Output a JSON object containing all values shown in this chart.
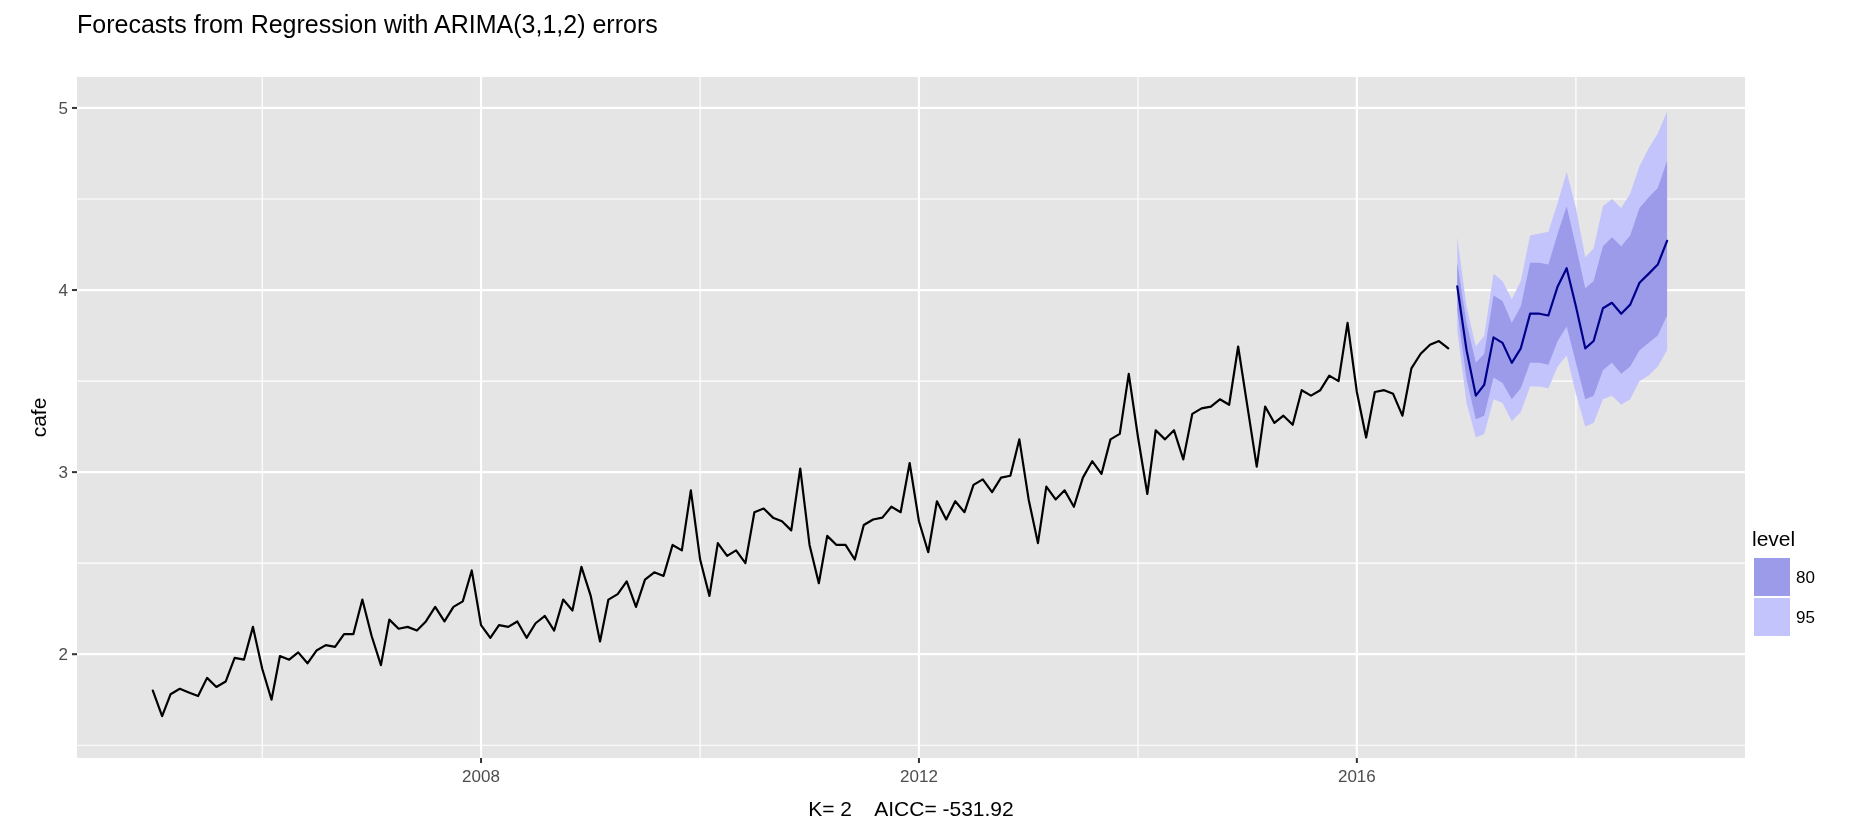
{
  "chart_data": {
    "type": "line",
    "title": "Forecasts from Regression with ARIMA(3,1,2) errors",
    "xlabel": "K= 2    AICC= -531.92",
    "ylabel": "cafe",
    "legend_title": "level",
    "legend": "right",
    "grid": true,
    "xlim": [
      "2004-04-23",
      "2019-07-19"
    ],
    "xticks": [
      {
        "value": "2006",
        "label": null
      },
      "2008",
      {
        "value": "2010",
        "label": null
      },
      "2012",
      {
        "value": "2014",
        "label": null
      },
      "2016",
      {
        "value": "2018",
        "label": null
      }
    ],
    "ylim": [
      1.43,
      5.17
    ],
    "yticks": [
      {
        "value": 1.5,
        "label": null
      },
      2,
      {
        "value": 2.5,
        "label": null
      },
      3,
      {
        "value": 3.5,
        "label": null
      },
      4,
      {
        "value": 4.5,
        "label": null
      },
      5
    ],
    "series": [
      {
        "type": "area",
        "name": "95",
        "color": "#c4c4fc",
        "x": [
          "2016-12",
          "2017-01",
          "2017-02",
          "2017-03",
          "2017-04",
          "2017-05",
          "2017-06",
          "2017-07",
          "2017-08",
          "2017-09",
          "2017-10",
          "2017-11",
          "2017-12",
          "2018-01",
          "2018-02",
          "2018-03",
          "2018-04",
          "2018-05",
          "2018-06",
          "2018-07",
          "2018-08",
          "2018-09",
          "2018-10",
          "2018-11"
        ],
        "values": [
          null,
          null,
          null,
          null,
          null,
          null,
          null,
          null,
          null,
          null,
          null,
          null,
          null,
          null,
          null,
          null,
          null,
          null,
          null,
          null,
          null,
          null,
          null,
          null
        ],
        "lower": [
          3.78,
          3.38,
          3.19,
          3.21,
          3.4,
          3.38,
          3.28,
          3.33,
          3.47,
          3.47,
          3.46,
          3.58,
          3.64,
          3.43,
          3.25,
          3.27,
          3.4,
          3.42,
          3.37,
          3.4,
          3.5,
          3.53,
          3.58,
          3.67
        ],
        "upper": [
          4.29,
          3.91,
          3.69,
          3.75,
          4.09,
          4.05,
          3.95,
          4.05,
          4.3,
          4.31,
          4.32,
          4.48,
          4.65,
          4.45,
          4.18,
          4.23,
          4.46,
          4.5,
          4.45,
          4.53,
          4.68,
          4.78,
          4.86,
          4.98
        ]
      },
      {
        "type": "area",
        "name": "80",
        "color": "#9b9bea",
        "x": [
          "2016-12",
          "2017-01",
          "2017-02",
          "2017-03",
          "2017-04",
          "2017-05",
          "2017-06",
          "2017-07",
          "2017-08",
          "2017-09",
          "2017-10",
          "2017-11",
          "2017-12",
          "2018-01",
          "2018-02",
          "2018-03",
          "2018-04",
          "2018-05",
          "2018-06",
          "2018-07",
          "2018-08",
          "2018-09",
          "2018-10",
          "2018-11"
        ],
        "values": [
          null,
          null,
          null,
          null,
          null,
          null,
          null,
          null,
          null,
          null,
          null,
          null,
          null,
          null,
          null,
          null,
          null,
          null,
          null,
          null,
          null,
          null,
          null,
          null
        ],
        "lower": [
          3.89,
          3.51,
          3.29,
          3.31,
          3.52,
          3.49,
          3.4,
          3.46,
          3.6,
          3.6,
          3.59,
          3.72,
          3.8,
          3.6,
          3.4,
          3.42,
          3.56,
          3.6,
          3.54,
          3.58,
          3.67,
          3.71,
          3.75,
          3.86
        ],
        "upper": [
          4.15,
          3.82,
          3.6,
          3.65,
          3.97,
          3.94,
          3.82,
          3.91,
          4.15,
          4.15,
          4.14,
          4.31,
          4.46,
          4.24,
          4.01,
          4.05,
          4.24,
          4.29,
          4.24,
          4.3,
          4.45,
          4.51,
          4.56,
          4.71
        ]
      },
      {
        "color": "#000000",
        "x": [
          "2005-01",
          "2005-02",
          "2005-03",
          "2005-04",
          "2005-05",
          "2005-06",
          "2005-07",
          "2005-08",
          "2005-09",
          "2005-10",
          "2005-11",
          "2005-12",
          "2006-01",
          "2006-02",
          "2006-03",
          "2006-04",
          "2006-05",
          "2006-06",
          "2006-07",
          "2006-08",
          "2006-09",
          "2006-10",
          "2006-11",
          "2006-12",
          "2007-01",
          "2007-02",
          "2007-03",
          "2007-04",
          "2007-05",
          "2007-06",
          "2007-07",
          "2007-08",
          "2007-09",
          "2007-10",
          "2007-11",
          "2007-12",
          "2008-01",
          "2008-02",
          "2008-03",
          "2008-04",
          "2008-05",
          "2008-06",
          "2008-07",
          "2008-08",
          "2008-09",
          "2008-10",
          "2008-11",
          "2008-12",
          "2009-01",
          "2009-02",
          "2009-03",
          "2009-04",
          "2009-05",
          "2009-06",
          "2009-07",
          "2009-08",
          "2009-09",
          "2009-10",
          "2009-11",
          "2009-12",
          "2010-01",
          "2010-02",
          "2010-03",
          "2010-04",
          "2010-05",
          "2010-06",
          "2010-07",
          "2010-08",
          "2010-09",
          "2010-10",
          "2010-11",
          "2010-12",
          "2011-01",
          "2011-02",
          "2011-03",
          "2011-04",
          "2011-05",
          "2011-06",
          "2011-07",
          "2011-08",
          "2011-09",
          "2011-10",
          "2011-11",
          "2011-12",
          "2012-01",
          "2012-02",
          "2012-03",
          "2012-04",
          "2012-05",
          "2012-06",
          "2012-07",
          "2012-08",
          "2012-09",
          "2012-10",
          "2012-11",
          "2012-12",
          "2013-01",
          "2013-02",
          "2013-03",
          "2013-04",
          "2013-05",
          "2013-06",
          "2013-07",
          "2013-08",
          "2013-09",
          "2013-10",
          "2013-11",
          "2013-12",
          "2014-01",
          "2014-02",
          "2014-03",
          "2014-04",
          "2014-05",
          "2014-06",
          "2014-07",
          "2014-08",
          "2014-09",
          "2014-10",
          "2014-11",
          "2014-12",
          "2015-01",
          "2015-02",
          "2015-03",
          "2015-04",
          "2015-05",
          "2015-06",
          "2015-07",
          "2015-08",
          "2015-09",
          "2015-10",
          "2015-11",
          "2015-12",
          "2016-01",
          "2016-02",
          "2016-03",
          "2016-04",
          "2016-05",
          "2016-06",
          "2016-07",
          "2016-08",
          "2016-09",
          "2016-10",
          "2016-11"
        ],
        "values": [
          1.8,
          1.66,
          1.78,
          1.81,
          1.79,
          1.77,
          1.87,
          1.82,
          1.85,
          1.98,
          1.97,
          2.15,
          1.92,
          1.75,
          1.99,
          1.97,
          2.01,
          1.95,
          2.02,
          2.05,
          2.04,
          2.11,
          2.11,
          2.3,
          2.1,
          1.94,
          2.19,
          2.14,
          2.15,
          2.13,
          2.18,
          2.26,
          2.18,
          2.26,
          2.29,
          2.46,
          2.16,
          2.09,
          2.16,
          2.15,
          2.18,
          2.09,
          2.17,
          2.21,
          2.13,
          2.3,
          2.24,
          2.48,
          2.32,
          2.07,
          2.3,
          2.33,
          2.4,
          2.26,
          2.41,
          2.45,
          2.43,
          2.6,
          2.57,
          2.9,
          2.52,
          2.32,
          2.61,
          2.54,
          2.57,
          2.5,
          2.78,
          2.8,
          2.75,
          2.73,
          2.68,
          3.02,
          2.6,
          2.39,
          2.65,
          2.6,
          2.6,
          2.52,
          2.71,
          2.74,
          2.75,
          2.81,
          2.78,
          3.05,
          2.73,
          2.56,
          2.84,
          2.74,
          2.84,
          2.78,
          2.93,
          2.96,
          2.89,
          2.97,
          2.98,
          3.18,
          2.85,
          2.61,
          2.92,
          2.85,
          2.9,
          2.81,
          2.97,
          3.06,
          2.99,
          3.18,
          3.21,
          3.54,
          3.19,
          2.88,
          3.23,
          3.18,
          3.23,
          3.07,
          3.32,
          3.35,
          3.36,
          3.4,
          3.37,
          3.69,
          3.36,
          3.03,
          3.36,
          3.27,
          3.31,
          3.26,
          3.45,
          3.42,
          3.45,
          3.53,
          3.5,
          3.82,
          3.44,
          3.19,
          3.44,
          3.45,
          3.43,
          3.31,
          3.57,
          3.65,
          3.7,
          3.72,
          3.68
        ]
      },
      {
        "color": "#00008b",
        "x": [
          "2016-12",
          "2017-01",
          "2017-02",
          "2017-03",
          "2017-04",
          "2017-05",
          "2017-06",
          "2017-07",
          "2017-08",
          "2017-09",
          "2017-10",
          "2017-11",
          "2017-12",
          "2018-01",
          "2018-02",
          "2018-03",
          "2018-04",
          "2018-05",
          "2018-06",
          "2018-07",
          "2018-08",
          "2018-09",
          "2018-10",
          "2018-11"
        ],
        "values": [
          4.02,
          3.67,
          3.42,
          3.48,
          3.74,
          3.71,
          3.6,
          3.68,
          3.87,
          3.87,
          3.86,
          4.02,
          4.12,
          3.91,
          3.68,
          3.72,
          3.9,
          3.93,
          3.87,
          3.92,
          4.04,
          4.09,
          4.14,
          4.27
        ]
      }
    ]
  }
}
